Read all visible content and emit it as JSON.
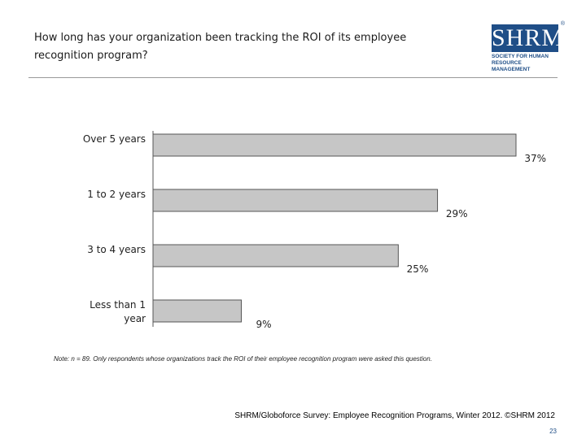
{
  "header": {
    "title_line1": "How long has your organization been tracking the ROI of its employee",
    "title_line2": "recognition program?"
  },
  "logo": {
    "mark": "SHRM",
    "sub_line1": "SOCIETY FOR HUMAN",
    "sub_line2": "RESOURCE MANAGEMENT",
    "color": "#1f4e87"
  },
  "chart_data": {
    "type": "bar",
    "orientation": "horizontal",
    "categories": [
      "Over 5 years",
      "1 to 2 years",
      "3 to 4 years",
      "Less than 1 year"
    ],
    "category_lines": [
      [
        "Over 5 years"
      ],
      [
        "1 to 2 years"
      ],
      [
        "3 to 4 years"
      ],
      [
        "Less than 1",
        "year"
      ]
    ],
    "values": [
      37,
      29,
      25,
      9
    ],
    "value_labels": [
      "37%",
      "29%",
      "25%",
      "9%"
    ],
    "xlim": [
      0,
      37
    ],
    "bar_color": "#c6c6c6",
    "bar_edge": "#555555",
    "grid": false,
    "legend": "none"
  },
  "footer": {
    "note": "Note: n = 89. Only respondents whose organizations track the ROI of their employee recognition program were asked this question.",
    "source": "SHRM/Globoforce Survey: Employee Recognition Programs, Winter 2012. ©SHRM 2012",
    "page_number": "23"
  }
}
